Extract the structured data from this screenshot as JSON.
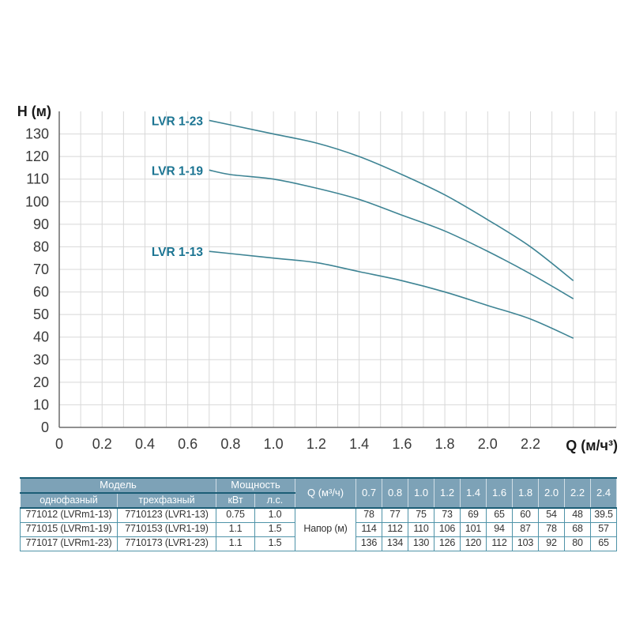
{
  "chart": {
    "y_axis_title": "H (м)",
    "x_axis_title": "Q (м/ч³)"
  },
  "chart_data": {
    "type": "line",
    "title": "",
    "xlabel": "Q (м/ч³)",
    "ylabel": "H (м)",
    "xlim": [
      0,
      2.6
    ],
    "ylim": [
      0,
      140
    ],
    "grid": true,
    "minor_grid_step_x": 0.1,
    "grid_step_y": 10,
    "x_tick_labels": [
      "0",
      "0.2",
      "0.4",
      "0.6",
      "0.8",
      "1.0",
      "1.2",
      "1.4",
      "1.6",
      "1.8",
      "2.0",
      "2.2"
    ],
    "y_tick_labels": [
      "0",
      "10",
      "20",
      "30",
      "40",
      "50",
      "60",
      "70",
      "80",
      "90",
      "100",
      "110",
      "120",
      "130"
    ],
    "x": [
      0.7,
      0.8,
      1.0,
      1.2,
      1.4,
      1.6,
      1.8,
      2.0,
      2.2,
      2.4
    ],
    "series": [
      {
        "name": "LVR 1-23",
        "values": [
          136,
          134,
          130,
          126,
          120,
          112,
          103,
          92,
          80,
          65
        ]
      },
      {
        "name": "LVR 1-19",
        "values": [
          114,
          112,
          110,
          106,
          101,
          94,
          87,
          78,
          68,
          57
        ]
      },
      {
        "name": "LVR 1-13",
        "values": [
          78,
          77,
          75,
          73,
          69,
          65,
          60,
          54,
          48,
          39.5
        ]
      }
    ],
    "line_color": "#3e8494",
    "label_color": "#1b7492",
    "grid_color": "#d8d8d8",
    "axis_color": "#6b6b6b",
    "tick_text_color": "#3a3a3a"
  },
  "table": {
    "headers": {
      "model": "Модель",
      "power": "Мощность",
      "q": "Q (м³/ч)",
      "single_phase": "однофазный",
      "three_phase": "трехфазный",
      "kw": "кВт",
      "hp": "л.с.",
      "napor": "Напор (м)"
    },
    "q_values": [
      "0.7",
      "0.8",
      "1.0",
      "1.2",
      "1.4",
      "1.6",
      "1.8",
      "2.0",
      "2.2",
      "2.4"
    ],
    "rows": [
      {
        "single_phase": "771012 (LVRm1-13)",
        "three_phase": "7710123 (LVR1-13)",
        "kw": "0.75",
        "hp": "1.0",
        "heads": [
          "78",
          "77",
          "75",
          "73",
          "69",
          "65",
          "60",
          "54",
          "48",
          "39.5"
        ]
      },
      {
        "single_phase": "771015 (LVRm1-19)",
        "three_phase": "7710153 (LVR1-19)",
        "kw": "1.1",
        "hp": "1.5",
        "heads": [
          "114",
          "112",
          "110",
          "106",
          "101",
          "94",
          "87",
          "78",
          "68",
          "57"
        ]
      },
      {
        "single_phase": "771017 (LVRm1-23)",
        "three_phase": "7710173 (LVR1-23)",
        "kw": "1.1",
        "hp": "1.5",
        "heads": [
          "136",
          "134",
          "130",
          "126",
          "120",
          "112",
          "103",
          "92",
          "80",
          "65"
        ]
      }
    ],
    "colors": {
      "header_bg": "#7da2b7",
      "header_text": "#ffffff",
      "border": "#4f93a8",
      "border_dark": "#1c5e76",
      "text": "#333333"
    }
  }
}
